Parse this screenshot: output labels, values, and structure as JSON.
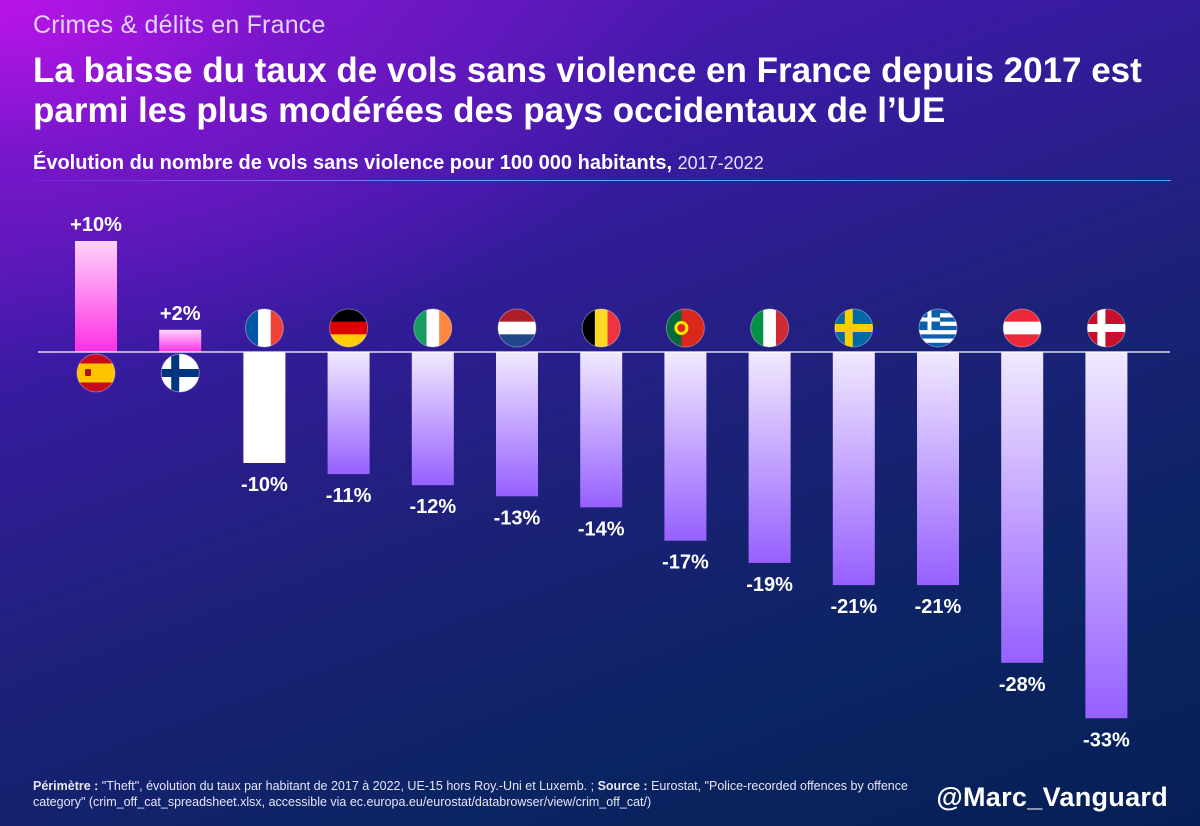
{
  "header": {
    "kicker": "Crimes & délits en France",
    "title": "La baisse du taux de vols sans violence en France depuis 2017 est parmi les plus modérées des pays occidentaux de l’UE",
    "subtitle_bold": "Évolution du nombre de vols sans violence pour 100 000 habitants,",
    "subtitle_light": "2017-2022"
  },
  "chart_data": {
    "type": "bar",
    "title": "Évolution du nombre de vols sans violence pour 100 000 habitants, 2017-2022",
    "unit": "%",
    "categories": [
      "Spain",
      "Finland",
      "France",
      "Germany",
      "Ireland",
      "Netherlands",
      "Belgium",
      "Portugal",
      "Italy",
      "Sweden",
      "Greece",
      "Austria",
      "Denmark"
    ],
    "flags": [
      "spain-flag",
      "finland-flag",
      "france-flag",
      "germany-flag",
      "ireland-flag",
      "netherlands-flag",
      "belgium-flag",
      "portugal-flag",
      "italy-flag",
      "sweden-flag",
      "greece-flag",
      "austria-flag",
      "denmark-flag"
    ],
    "values": [
      10,
      2,
      -10,
      -11,
      -12,
      -13,
      -14,
      -17,
      -19,
      -21,
      -21,
      -28,
      -33
    ],
    "labels": [
      "+10%",
      "+2%",
      "-10%",
      "-11%",
      "-12%",
      "-13%",
      "-14%",
      "-17%",
      "-19%",
      "-21%",
      "-21%",
      "-28%",
      "-33%"
    ],
    "highlight": "France",
    "ylim": [
      -33,
      10
    ],
    "colors": {
      "positive": "#ff3ce6",
      "negative": "#9b6bff",
      "highlight": "#ffffff",
      "axis": "#ffffff"
    }
  },
  "footer": {
    "perimetre_label": "Périmètre :",
    "perimetre_text": "\"Theft\", évolution du taux par habitant de 2017 à 2022, UE-15 hors Roy.-Uni et Luxemb. ;",
    "source_label": "Source :",
    "source_text": "Eurostat, \"Police-recorded offences by offence category\" (crim_off_cat_spreadsheet.xlsx, accessible via ec.europa.eu/eurostat/databrowser/view/crim_off_cat/)",
    "handle": "@Marc_Vanguard"
  }
}
